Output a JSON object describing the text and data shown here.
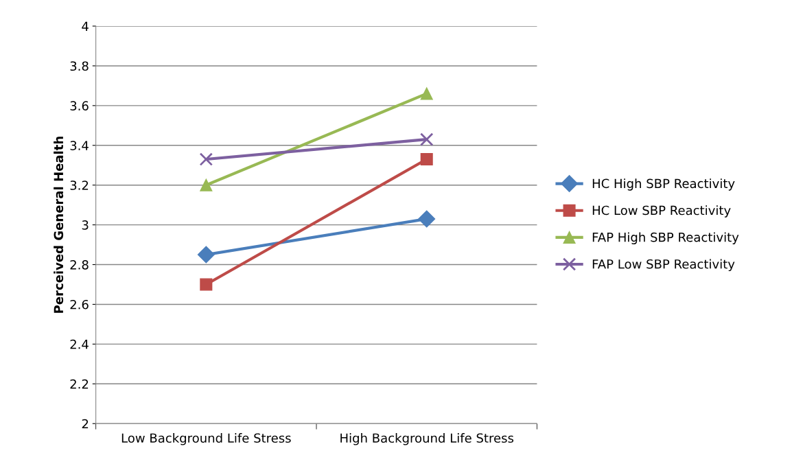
{
  "chart_data": {
    "type": "line",
    "ylabel": "Perceived General Health",
    "categories": [
      "Low Background Life Stress",
      "High Background Life Stress"
    ],
    "series": [
      {
        "name": "HC High SBP Reactivity",
        "color": "#4a7ebb",
        "marker": "diamond",
        "values": [
          2.85,
          3.03
        ]
      },
      {
        "name": "HC Low SBP Reactivity",
        "color": "#be4b48",
        "marker": "square",
        "values": [
          2.7,
          3.33
        ]
      },
      {
        "name": "FAP High SBP Reactivity",
        "color": "#98b954",
        "marker": "triangle",
        "values": [
          3.2,
          3.66
        ]
      },
      {
        "name": "FAP Low SBP Reactivity",
        "color": "#7d60a0",
        "marker": "cross",
        "values": [
          3.33,
          3.43
        ]
      }
    ],
    "ylim": [
      2,
      4
    ],
    "yticks": [
      2,
      2.2,
      2.4,
      2.6,
      2.8,
      3,
      3.2,
      3.4,
      3.6,
      3.8,
      4
    ],
    "grid": "y",
    "legend": "right",
    "line_style": "solid"
  }
}
